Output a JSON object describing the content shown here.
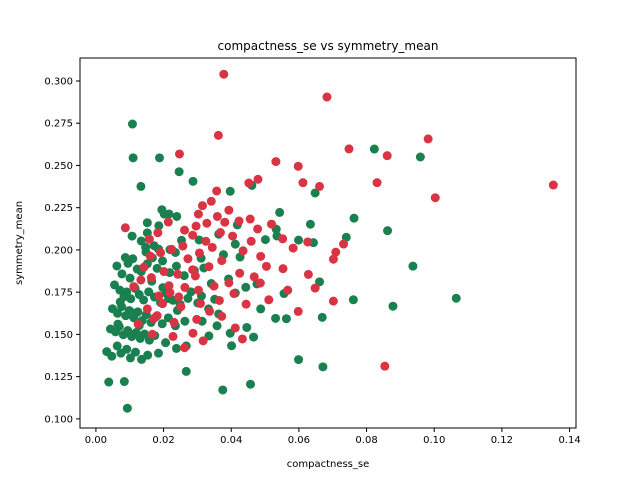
{
  "chart_data": {
    "type": "scatter",
    "title": "compactness_se vs symmetry_mean",
    "xlabel": "compactness_se",
    "ylabel": "symmetry_mean",
    "xlim": [
      -0.0047,
      0.1419
    ],
    "ylim": [
      0.0946,
      0.3136
    ],
    "xticks": [
      0.0,
      0.02,
      0.04,
      0.06,
      0.08,
      0.1,
      0.12,
      0.14
    ],
    "xtick_labels": [
      "0.00",
      "0.02",
      "0.04",
      "0.06",
      "0.08",
      "0.10",
      "0.12",
      "0.14"
    ],
    "yticks": [
      0.1,
      0.125,
      0.15,
      0.175,
      0.2,
      0.225,
      0.25,
      0.275,
      0.3
    ],
    "ytick_labels": [
      "0.100",
      "0.125",
      "0.150",
      "0.175",
      "0.200",
      "0.225",
      "0.250",
      "0.275",
      "0.300"
    ],
    "grid": false,
    "legend": "none",
    "series": [
      {
        "color": "#1a8050",
        "points": [
          [
            0.0108,
            0.2745
          ],
          [
            0.011,
            0.2545
          ],
          [
            0.0188,
            0.2545
          ],
          [
            0.0133,
            0.2376
          ],
          [
            0.0246,
            0.2463
          ],
          [
            0.0287,
            0.2406
          ],
          [
            0.0397,
            0.2347
          ],
          [
            0.0461,
            0.2382
          ],
          [
            0.0195,
            0.2238
          ],
          [
            0.0216,
            0.2213
          ],
          [
            0.0239,
            0.2198
          ],
          [
            0.0152,
            0.2161
          ],
          [
            0.0186,
            0.2143
          ],
          [
            0.0418,
            0.2148
          ],
          [
            0.0543,
            0.2222
          ],
          [
            0.0533,
            0.2123
          ],
          [
            0.0634,
            0.2152
          ],
          [
            0.0763,
            0.2188
          ],
          [
            0.0862,
            0.2114
          ],
          [
            0.0648,
            0.2337
          ],
          [
            0.0823,
            0.2597
          ],
          [
            0.0959,
            0.255
          ],
          [
            0.0107,
            0.2082
          ],
          [
            0.0134,
            0.2053
          ],
          [
            0.0147,
            0.2016
          ],
          [
            0.0172,
            0.2025
          ],
          [
            0.0219,
            0.2002
          ],
          [
            0.0253,
            0.2057
          ],
          [
            0.0305,
            0.2059
          ],
          [
            0.0363,
            0.2093
          ],
          [
            0.0412,
            0.2034
          ],
          [
            0.0501,
            0.2061
          ],
          [
            0.0535,
            0.2083
          ],
          [
            0.0599,
            0.2058
          ],
          [
            0.0643,
            0.2043
          ],
          [
            0.074,
            0.2075
          ],
          [
            0.0661,
            0.1811
          ],
          [
            0.0937,
            0.1904
          ],
          [
            0.0062,
            0.1905
          ],
          [
            0.0077,
            0.1858
          ],
          [
            0.0087,
            0.1955
          ],
          [
            0.0095,
            0.1921
          ],
          [
            0.0109,
            0.1948
          ],
          [
            0.0122,
            0.1887
          ],
          [
            0.0134,
            0.1872
          ],
          [
            0.0152,
            0.1918
          ],
          [
            0.0167,
            0.1953
          ],
          [
            0.0181,
            0.1891
          ],
          [
            0.0197,
            0.1935
          ],
          [
            0.0218,
            0.1866
          ],
          [
            0.0238,
            0.1904
          ],
          [
            0.0261,
            0.1848
          ],
          [
            0.0291,
            0.1878
          ],
          [
            0.0319,
            0.1893
          ],
          [
            0.0341,
            0.1801
          ],
          [
            0.0392,
            0.1828
          ],
          [
            0.0412,
            0.1745
          ],
          [
            0.0443,
            0.1779
          ],
          [
            0.0476,
            0.1799
          ],
          [
            0.0055,
            0.1793
          ],
          [
            0.0071,
            0.1762
          ],
          [
            0.0083,
            0.1723
          ],
          [
            0.0091,
            0.1751
          ],
          [
            0.0103,
            0.1711
          ],
          [
            0.0116,
            0.1772
          ],
          [
            0.0128,
            0.1736
          ],
          [
            0.0141,
            0.1704
          ],
          [
            0.0156,
            0.1752
          ],
          [
            0.0173,
            0.1721
          ],
          [
            0.0191,
            0.1689
          ],
          [
            0.0207,
            0.1745
          ],
          [
            0.0228,
            0.1702
          ],
          [
            0.0249,
            0.1678
          ],
          [
            0.0272,
            0.1713
          ],
          [
            0.0301,
            0.1686
          ],
          [
            0.0333,
            0.1651
          ],
          [
            0.0351,
            0.1708
          ],
          [
            0.0049,
            0.1652
          ],
          [
            0.0064,
            0.1625
          ],
          [
            0.0076,
            0.1664
          ],
          [
            0.0088,
            0.1611
          ],
          [
            0.0099,
            0.1641
          ],
          [
            0.0112,
            0.1598
          ],
          [
            0.0124,
            0.1633
          ],
          [
            0.0137,
            0.1582
          ],
          [
            0.0149,
            0.1617
          ],
          [
            0.0163,
            0.1571
          ],
          [
            0.0178,
            0.1605
          ],
          [
            0.0196,
            0.1563
          ],
          [
            0.0214,
            0.1598
          ],
          [
            0.0235,
            0.1551
          ],
          [
            0.0263,
            0.1578
          ],
          [
            0.0314,
            0.1578
          ],
          [
            0.0358,
            0.1551
          ],
          [
            0.0446,
            0.1541
          ],
          [
            0.0531,
            0.1595
          ],
          [
            0.0563,
            0.1593
          ],
          [
            0.0669,
            0.1601
          ],
          [
            0.0761,
            0.1705
          ],
          [
            0.0878,
            0.1667
          ],
          [
            0.1065,
            0.1714
          ],
          [
            0.0043,
            0.1532
          ],
          [
            0.0058,
            0.1515
          ],
          [
            0.0069,
            0.1546
          ],
          [
            0.0081,
            0.1498
          ],
          [
            0.0094,
            0.1523
          ],
          [
            0.0106,
            0.1487
          ],
          [
            0.0119,
            0.1511
          ],
          [
            0.0131,
            0.1476
          ],
          [
            0.0144,
            0.1502
          ],
          [
            0.0158,
            0.1466
          ],
          [
            0.0174,
            0.1493
          ],
          [
            0.0206,
            0.1451
          ],
          [
            0.0267,
            0.1432
          ],
          [
            0.0334,
            0.1491
          ],
          [
            0.0397,
            0.1507
          ],
          [
            0.0466,
            0.1484
          ],
          [
            0.0032,
            0.1398
          ],
          [
            0.0047,
            0.1371
          ],
          [
            0.0063,
            0.1432
          ],
          [
            0.0074,
            0.1389
          ],
          [
            0.0091,
            0.1412
          ],
          [
            0.0102,
            0.1361
          ],
          [
            0.0117,
            0.1395
          ],
          [
            0.0135,
            0.1352
          ],
          [
            0.0153,
            0.1377
          ],
          [
            0.0185,
            0.1389
          ],
          [
            0.0238,
            0.1417
          ],
          [
            0.0401,
            0.1433
          ],
          [
            0.0599,
            0.1351
          ],
          [
            0.0671,
            0.1308
          ],
          [
            0.0267,
            0.1281
          ],
          [
            0.0038,
            0.1218
          ],
          [
            0.0084,
            0.1221
          ],
          [
            0.0375,
            0.1171
          ],
          [
            0.0457,
            0.1205
          ],
          [
            0.0093,
            0.1063
          ],
          [
            0.0202,
            0.2212
          ],
          [
            0.0311,
            0.1951
          ],
          [
            0.0377,
            0.1972
          ],
          [
            0.0235,
            0.1985
          ],
          [
            0.0281,
            0.1752
          ],
          [
            0.0363,
            0.1621
          ],
          [
            0.0128,
            0.1552
          ],
          [
            0.0165,
            0.1815
          ],
          [
            0.0148,
            0.1988
          ],
          [
            0.0241,
            0.1642
          ],
          [
            0.0312,
            0.1727
          ],
          [
            0.0426,
            0.1958
          ],
          [
            0.0556,
            0.1742
          ],
          [
            0.0487,
            0.1651
          ],
          [
            0.0152,
            0.2101
          ],
          [
            0.0185,
            0.2005
          ],
          [
            0.0198,
            0.1777
          ],
          [
            0.0215,
            0.1712
          ],
          [
            0.0119,
            0.1628
          ],
          [
            0.0101,
            0.1833
          ],
          [
            0.0072,
            0.1692
          ],
          [
            0.0065,
            0.1561
          ]
        ]
      },
      {
        "color": "#d93444",
        "points": [
          [
            0.0378,
            0.304
          ],
          [
            0.0683,
            0.2905
          ],
          [
            0.0362,
            0.2678
          ],
          [
            0.0982,
            0.2657
          ],
          [
            0.0748,
            0.2598
          ],
          [
            0.0247,
            0.2568
          ],
          [
            0.0861,
            0.2558
          ],
          [
            0.0532,
            0.2523
          ],
          [
            0.0598,
            0.2495
          ],
          [
            0.1352,
            0.2384
          ],
          [
            0.0831,
            0.2398
          ],
          [
            0.0612,
            0.2398
          ],
          [
            0.0661,
            0.2376
          ],
          [
            0.0479,
            0.2418
          ],
          [
            0.0452,
            0.2396
          ],
          [
            0.1003,
            0.2309
          ],
          [
            0.0357,
            0.2349
          ],
          [
            0.0315,
            0.2262
          ],
          [
            0.0341,
            0.2288
          ],
          [
            0.0393,
            0.2235
          ],
          [
            0.0303,
            0.2212
          ],
          [
            0.0359,
            0.2198
          ],
          [
            0.0423,
            0.2171
          ],
          [
            0.0456,
            0.2183
          ],
          [
            0.0519,
            0.2153
          ],
          [
            0.0296,
            0.2141
          ],
          [
            0.0328,
            0.2158
          ],
          [
            0.0262,
            0.2117
          ],
          [
            0.0214,
            0.2165
          ],
          [
            0.0183,
            0.2102
          ],
          [
            0.0087,
            0.2131
          ],
          [
            0.0478,
            0.2124
          ],
          [
            0.0368,
            0.2103
          ],
          [
            0.0404,
            0.2082
          ],
          [
            0.0552,
            0.2066
          ],
          [
            0.0626,
            0.2047
          ],
          [
            0.0732,
            0.2035
          ],
          [
            0.0286,
            0.2087
          ],
          [
            0.0344,
            0.2015
          ],
          [
            0.0257,
            0.2023
          ],
          [
            0.0224,
            0.2003
          ],
          [
            0.0191,
            0.1984
          ],
          [
            0.0161,
            0.1963
          ],
          [
            0.0306,
            0.1982
          ],
          [
            0.0435,
            0.1995
          ],
          [
            0.0487,
            0.1962
          ],
          [
            0.0709,
            0.1987
          ],
          [
            0.0702,
            0.1945
          ],
          [
            0.0372,
            0.1937
          ],
          [
            0.0334,
            0.1901
          ],
          [
            0.0286,
            0.1883
          ],
          [
            0.0242,
            0.1856
          ],
          [
            0.0201,
            0.1872
          ],
          [
            0.0164,
            0.1836
          ],
          [
            0.0425,
            0.1862
          ],
          [
            0.0468,
            0.1841
          ],
          [
            0.0553,
            0.1889
          ],
          [
            0.0628,
            0.1855
          ],
          [
            0.0349,
            0.1786
          ],
          [
            0.0303,
            0.1762
          ],
          [
            0.0263,
            0.1778
          ],
          [
            0.0219,
            0.1747
          ],
          [
            0.0186,
            0.1728
          ],
          [
            0.0486,
            0.1804
          ],
          [
            0.0408,
            0.1742
          ],
          [
            0.0567,
            0.1762
          ],
          [
            0.0648,
            0.1774
          ],
          [
            0.0365,
            0.1701
          ],
          [
            0.0309,
            0.1683
          ],
          [
            0.0251,
            0.1664
          ],
          [
            0.0197,
            0.1682
          ],
          [
            0.0152,
            0.1651
          ],
          [
            0.0444,
            0.1679
          ],
          [
            0.0511,
            0.1705
          ],
          [
            0.0702,
            0.1697
          ],
          [
            0.0598,
            0.1636
          ],
          [
            0.0372,
            0.1607
          ],
          [
            0.0298,
            0.1589
          ],
          [
            0.0231,
            0.1571
          ],
          [
            0.0171,
            0.1594
          ],
          [
            0.0125,
            0.1561
          ],
          [
            0.0412,
            0.1538
          ],
          [
            0.0287,
            0.1507
          ],
          [
            0.0228,
            0.1488
          ],
          [
            0.0167,
            0.1501
          ],
          [
            0.0317,
            0.1462
          ],
          [
            0.0433,
            0.1473
          ],
          [
            0.0262,
            0.1421
          ],
          [
            0.0854,
            0.1312
          ],
          [
            0.0216,
            0.1788
          ],
          [
            0.0325,
            0.2051
          ],
          [
            0.0272,
            0.1948
          ],
          [
            0.0393,
            0.1805
          ],
          [
            0.0181,
            0.1611
          ],
          [
            0.0142,
            0.1898
          ],
          [
            0.0245,
            0.1722
          ],
          [
            0.0336,
            0.1637
          ],
          [
            0.0112,
            0.1783
          ],
          [
            0.0158,
            0.2064
          ],
          [
            0.0381,
            0.2164
          ],
          [
            0.0459,
            0.2051
          ],
          [
            0.0504,
            0.1903
          ],
          [
            0.0583,
            0.2011
          ],
          [
            0.0294,
            0.1846
          ],
          [
            0.0133,
            0.1822
          ]
        ]
      }
    ]
  }
}
